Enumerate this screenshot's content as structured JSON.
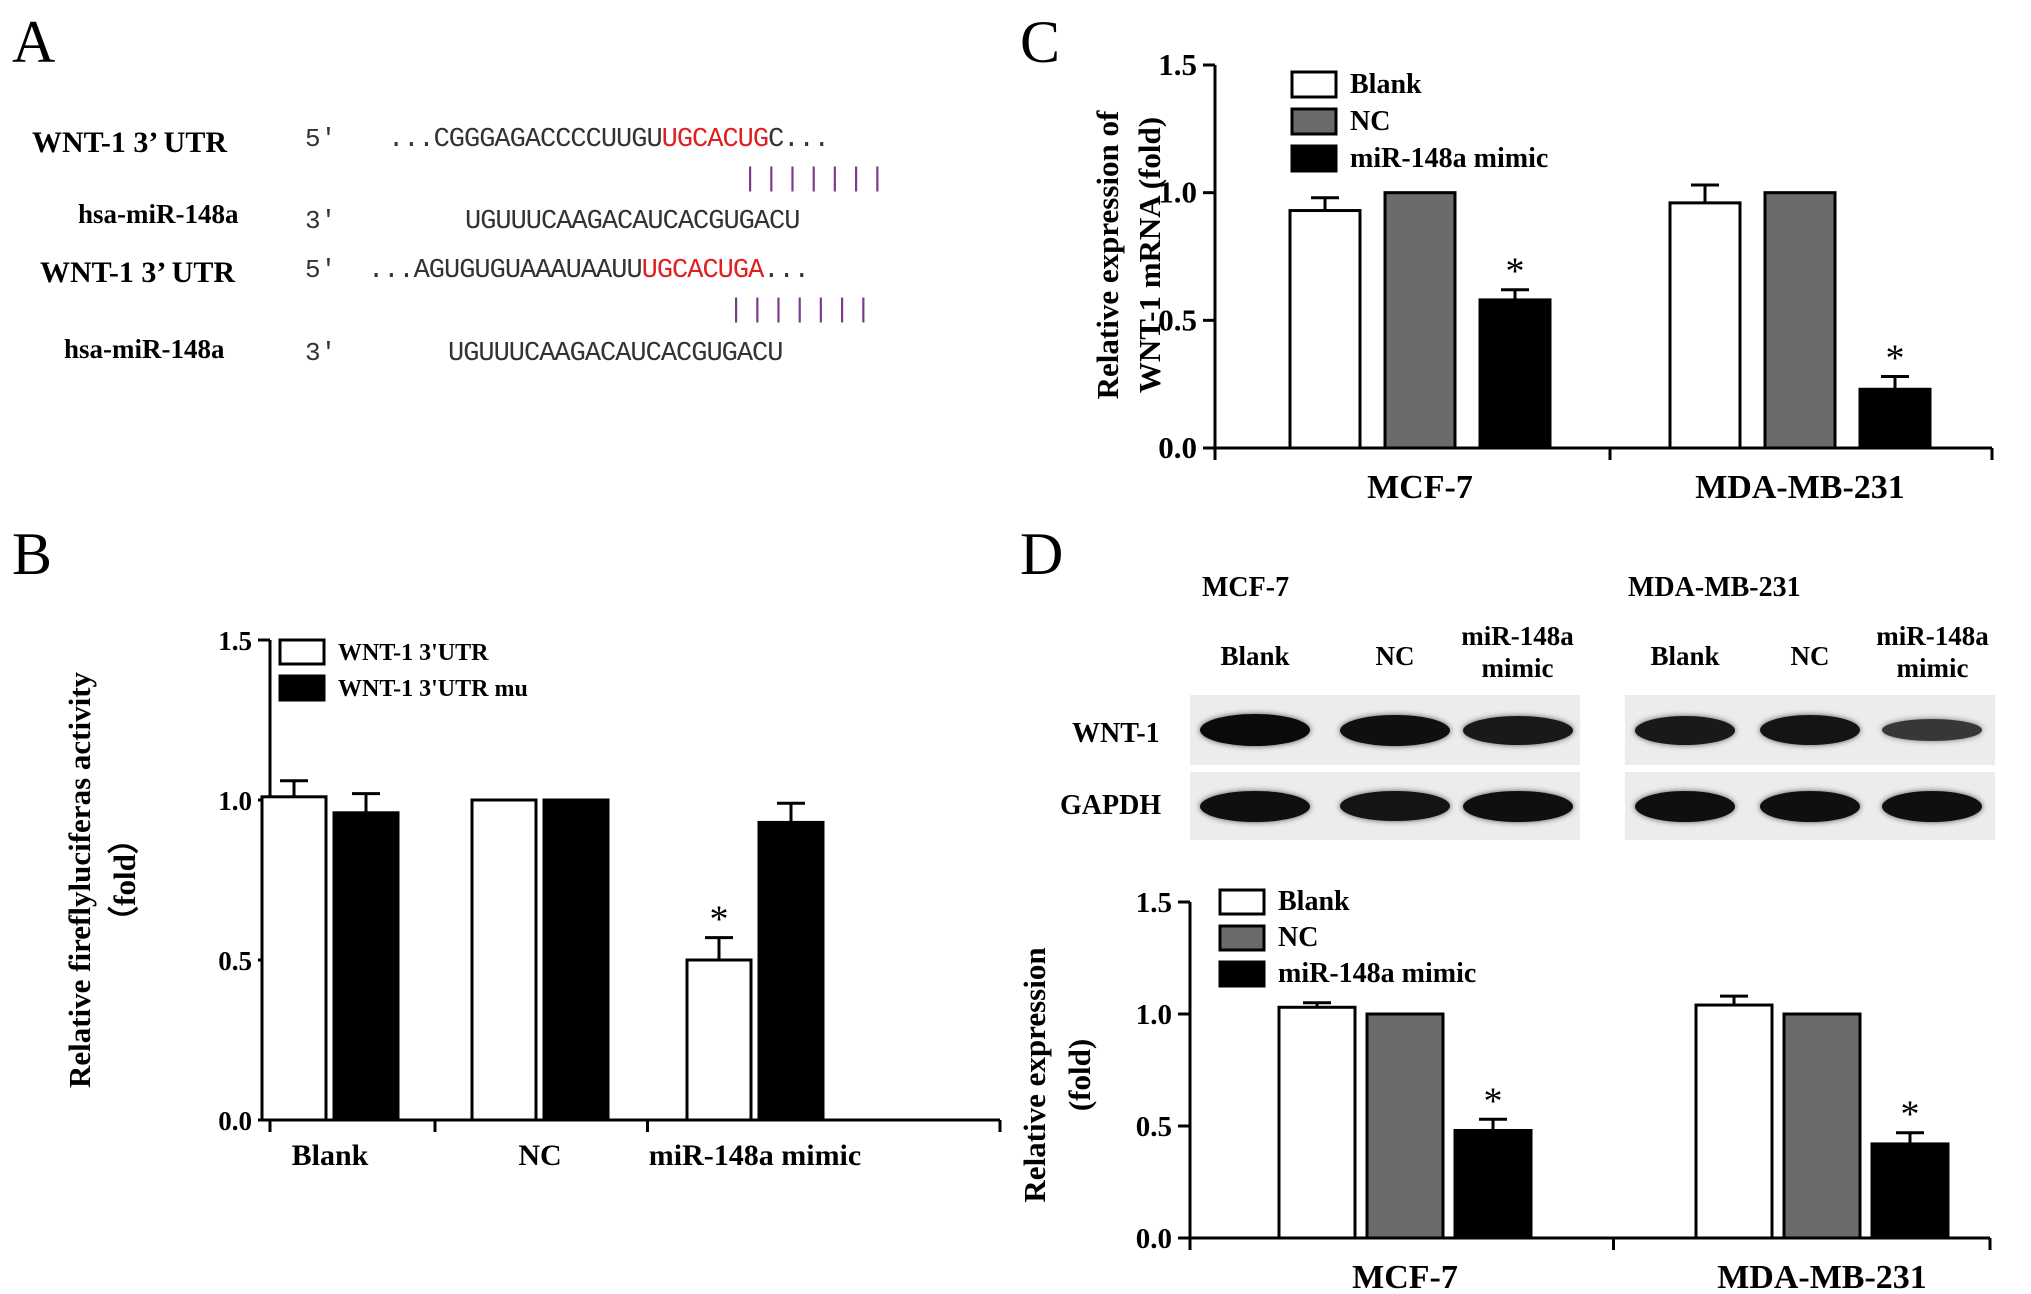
{
  "panels": {
    "a": "A",
    "b": "B",
    "c": "C",
    "d": "D"
  },
  "alignment": {
    "pairs": [
      {
        "utr_label": "WNT-1 3’ UTR",
        "utr_end": "5'",
        "utr_prefix": "...CGGGAGACCCCUUGU",
        "utr_highlight": "UGCACUG",
        "utr_suffix": "C...",
        "bond_marks": "|||||||",
        "mir_label": "hsa-miR-148a",
        "mir_end": "3'",
        "mir_sequence": "UGUUUCAAGACAUCACGUGACU"
      },
      {
        "utr_label": "WNT-1 3’ UTR",
        "utr_end": "5'",
        "utr_prefix": "...AGUGUGUAAAUAAUU",
        "utr_highlight": "UGCACUGA",
        "utr_suffix": "...",
        "bond_marks": "|||||||",
        "mir_label": "hsa-miR-148a",
        "mir_end": "3'",
        "mir_sequence": "UGUUUCAAGACAUCACGUGACU"
      }
    ],
    "highlight_color": "#e02020",
    "bond_color": "#7b3b8c"
  },
  "western": {
    "groups": [
      {
        "title": "MCF-7",
        "lanes": [
          "Blank",
          "NC",
          "miR-148a mimic"
        ]
      },
      {
        "title": "MDA-MB-231",
        "lanes": [
          "Blank",
          "NC",
          "miR-148a mimic"
        ]
      }
    ],
    "rows": [
      "WNT-1",
      "GAPDH"
    ],
    "band_intensity": {
      "MCF-7": {
        "WNT-1": [
          1.0,
          0.95,
          0.85
        ],
        "GAPDH": [
          0.95,
          0.9,
          0.95
        ]
      },
      "MDA-MB-231": {
        "WNT-1": [
          0.85,
          0.9,
          0.55
        ],
        "GAPDH": [
          0.95,
          0.95,
          0.95
        ]
      }
    }
  },
  "chart_data": [
    {
      "panel": "B",
      "type": "bar",
      "categories": [
        "Blank",
        "NC",
        "miR-148a mimic"
      ],
      "series": [
        {
          "name": "WNT-1 3'UTR",
          "fill": "#ffffff",
          "values": [
            1.01,
            1.0,
            0.5
          ],
          "errors": [
            0.05,
            0,
            0.07
          ],
          "sig": [
            "",
            "",
            "*"
          ]
        },
        {
          "name": "WNT-1 3'UTR mu",
          "fill": "#000000",
          "values": [
            0.96,
            1.0,
            0.93
          ],
          "errors": [
            0.06,
            0,
            0.06
          ],
          "sig": [
            "",
            "",
            ""
          ]
        }
      ],
      "ylabel": "Relative fireflyluciferas activity",
      "ylabel2": "（fold）",
      "ylim": [
        0,
        1.5
      ],
      "yticks": [
        "0.0",
        "0.5",
        "1.0",
        "1.5"
      ],
      "legend_position": "top-left",
      "grid": false
    },
    {
      "panel": "C",
      "type": "bar",
      "categories": [
        "MCF-7",
        "MDA-MB-231"
      ],
      "series": [
        {
          "name": "Blank",
          "fill": "#ffffff",
          "values": [
            0.93,
            0.96
          ],
          "errors": [
            0.05,
            0.07
          ],
          "sig": [
            "",
            ""
          ]
        },
        {
          "name": "NC",
          "fill": "#6b6b6b",
          "values": [
            1.0,
            1.0
          ],
          "errors": [
            0,
            0
          ],
          "sig": [
            "",
            ""
          ]
        },
        {
          "name": "miR-148a mimic",
          "fill": "#000000",
          "values": [
            0.58,
            0.23
          ],
          "errors": [
            0.04,
            0.05
          ],
          "sig": [
            "*",
            "*"
          ]
        }
      ],
      "ylabel": "Relative expression of",
      "ylabel2": "WNT-1 mRNA (fold)",
      "ylim": [
        0,
        1.5
      ],
      "yticks": [
        "0.0",
        "0.5",
        "1.0",
        "1.5"
      ],
      "legend_position": "top-left",
      "grid": false
    },
    {
      "panel": "D",
      "type": "bar",
      "categories": [
        "MCF-7",
        "MDA-MB-231"
      ],
      "series": [
        {
          "name": "Blank",
          "fill": "#ffffff",
          "values": [
            1.03,
            1.04
          ],
          "errors": [
            0.02,
            0.04
          ],
          "sig": [
            "",
            ""
          ]
        },
        {
          "name": "NC",
          "fill": "#6b6b6b",
          "values": [
            1.0,
            1.0
          ],
          "errors": [
            0,
            0
          ],
          "sig": [
            "",
            ""
          ]
        },
        {
          "name": "miR-148a mimic",
          "fill": "#000000",
          "values": [
            0.48,
            0.42
          ],
          "errors": [
            0.05,
            0.05
          ],
          "sig": [
            "*",
            "*"
          ]
        }
      ],
      "ylabel": "Relative  expression",
      "ylabel2": "(fold)",
      "ylim": [
        0,
        1.5
      ],
      "yticks": [
        "0.0",
        "0.5",
        "1.0",
        "1.5"
      ],
      "legend_position": "top-left",
      "grid": false
    }
  ]
}
